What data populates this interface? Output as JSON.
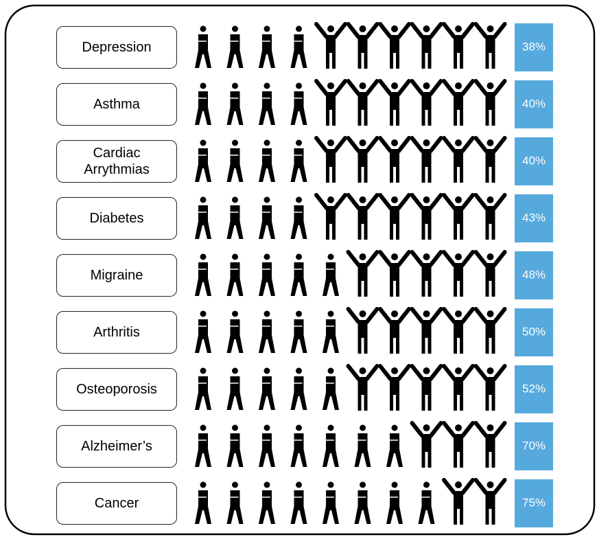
{
  "chart_data": {
    "type": "pictograph",
    "categories": [
      "Depression",
      "Asthma",
      "Cardiac Arrythmias",
      "Diabetes",
      "Migraine",
      "Arthritis",
      "Osteoporosis",
      "Alzheimer’s",
      "Cancer"
    ],
    "values": [
      38,
      40,
      40,
      43,
      48,
      50,
      52,
      70,
      75
    ],
    "value_labels": [
      "38%",
      "40%",
      "40%",
      "43%",
      "48%",
      "50%",
      "52%",
      "70%",
      "75%"
    ],
    "color": "#55a9dd"
  }
}
